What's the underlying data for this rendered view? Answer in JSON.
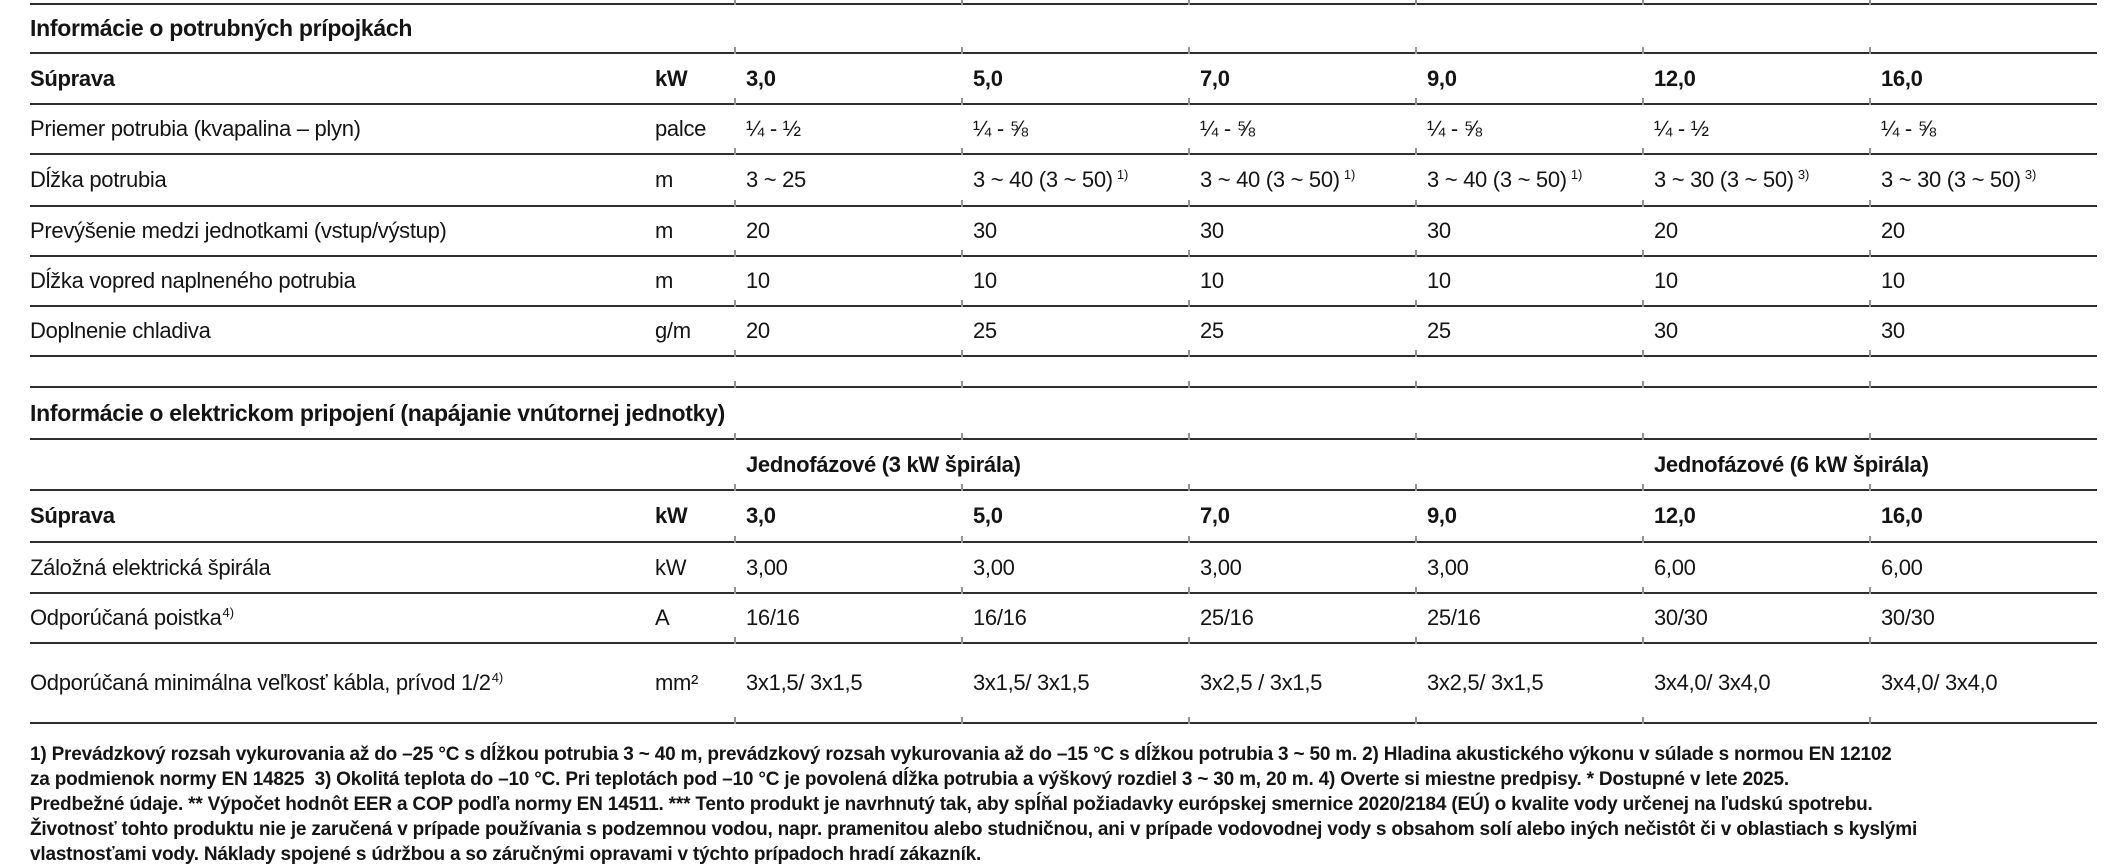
{
  "page": {
    "background": "#ffffff",
    "text_color": "#141414",
    "rule_color": "#2e2e2e",
    "tick_color": "#949494"
  },
  "table1": {
    "title": "Informácie o potrubných prípojkách",
    "header": {
      "label": "Súprava",
      "unit": "kW",
      "values": [
        "3,0",
        "5,0",
        "7,0",
        "9,0",
        "12,0",
        "16,0"
      ]
    },
    "rows": [
      {
        "label": "Priemer potrubia (kvapalina – plyn)",
        "unit": "palce",
        "values": [
          "¼ - ½",
          "¼ - ⅝",
          "¼ - ⅝",
          "¼ - ⅝",
          "¼ - ½",
          "¼ - ⅝"
        ]
      },
      {
        "label": "Dĺžka potrubia",
        "unit": "m",
        "values": [
          {
            "t": "3 ~ 25",
            "sup": ""
          },
          {
            "t": "3 ~ 40 (3 ~ 50)",
            "sup": "1)"
          },
          {
            "t": "3 ~ 40 (3 ~ 50)",
            "sup": "1)"
          },
          {
            "t": "3 ~ 40 (3 ~ 50)",
            "sup": "1)"
          },
          {
            "t": "3 ~ 30 (3 ~ 50)",
            "sup": "3)"
          },
          {
            "t": "3 ~ 30 (3 ~ 50)",
            "sup": "3)"
          }
        ]
      },
      {
        "label": "Prevýšenie medzi jednotkami (vstup/výstup)",
        "unit": "m",
        "values": [
          "20",
          "30",
          "30",
          "30",
          "20",
          "20"
        ]
      },
      {
        "label": "Dĺžka vopred naplneného potrubia",
        "unit": "m",
        "values": [
          "10",
          "10",
          "10",
          "10",
          "10",
          "10"
        ]
      },
      {
        "label": "Doplnenie chladiva",
        "unit": "g/m",
        "values": [
          "20",
          "25",
          "25",
          "25",
          "30",
          "30"
        ]
      }
    ]
  },
  "table2": {
    "title": "Informácie o elektrickom pripojení (napájanie vnútornej jednotky)",
    "group_header": {
      "left": "Jednofázové (3 kW špirála)",
      "right": "Jednofázové (6 kW špirála)"
    },
    "header": {
      "label": "Súprava",
      "unit": "kW",
      "values": [
        "3,0",
        "5,0",
        "7,0",
        "9,0",
        "12,0",
        "16,0"
      ]
    },
    "rows": [
      {
        "label": "Záložná elektrická špirála",
        "label_sup": "",
        "unit": "kW",
        "values": [
          "3,00",
          "3,00",
          "3,00",
          "3,00",
          "6,00",
          "6,00"
        ]
      },
      {
        "label": "Odporúčaná poistka",
        "label_sup": "4)",
        "unit": "A",
        "values": [
          "16/16",
          "16/16",
          "25/16",
          "25/16",
          "30/30",
          "30/30"
        ]
      },
      {
        "label": "Odporúčaná minimálna veľkosť kábla, prívod 1/2",
        "label_sup": "4)",
        "unit": "mm²",
        "values": [
          "3x1,5/ 3x1,5",
          "3x1,5/ 3x1,5",
          "3x2,5 / 3x1,5",
          "3x2,5/ 3x1,5",
          "3x4,0/ 3x4,0",
          "3x4,0/ 3x4,0"
        ]
      }
    ]
  },
  "footnotes": {
    "lines": [
      "1) Prevádzkový rozsah vykurovania až do –25 °C s dĺžkou potrubia 3 ~ 40 m, prevádzkový rozsah vykurovania až do –15 °C s dĺžkou potrubia 3 ~ 50 m. 2) Hladina akustického výkonu v súlade s normou EN 12102",
      "za podmienok normy EN 14825  3) Okolitá teplota do –10 °C. Pri teplotách pod –10 °C je povolená dĺžka potrubia a výškový rozdiel 3 ~ 30 m, 20 m. 4) Overte si miestne predpisy. * Dostupné v lete 2025.",
      "Predbežné údaje. ** Výpočet hodnôt EER a COP podľa normy EN 14511. *** Tento produkt je navrhnutý tak, aby spĺňal požiadavky európskej smernice 2020/2184 (EÚ) o kvalite vody určenej na ľudskú spotrebu.",
      "Životnosť tohto produktu nie je zaručená v prípade používania s podzemnou vodou, napr. pramenitou alebo studničnou, ani v prípade vodovodnej vody s obsahom solí alebo iných nečistôt či v oblastiach s kyslými",
      "vlastnosťami vody. Náklady spojené s údržbou a so záručnými opravami v týchto prípadoch hradí zákazník."
    ]
  }
}
